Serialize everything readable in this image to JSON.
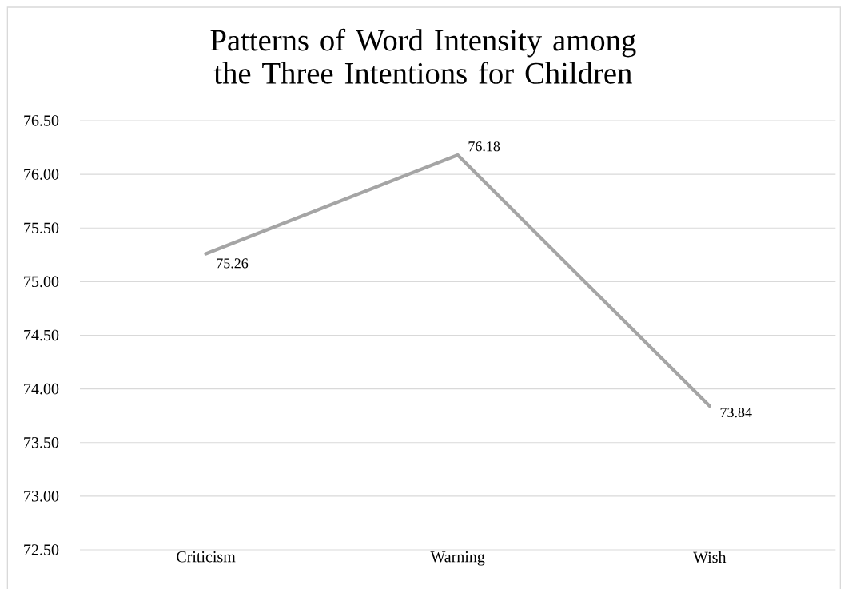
{
  "chart_data": {
    "type": "line",
    "title": "Patterns of Word Intensity among the Three Intentions for Children",
    "categories": [
      "Criticism",
      "Warning",
      "Wish"
    ],
    "values": [
      75.26,
      76.18,
      73.84
    ],
    "color": "#a5a5a5",
    "data_labels": true,
    "ylim": [
      72.5,
      76.5
    ],
    "yticks": [
      {
        "value": 72.5,
        "label": "72.50"
      },
      {
        "value": 73.0,
        "label": "73.00"
      },
      {
        "value": 73.5,
        "label": "73.50"
      },
      {
        "value": 74.0,
        "label": "74.00"
      },
      {
        "value": 74.5,
        "label": "74.50"
      },
      {
        "value": 75.0,
        "label": "75.00"
      },
      {
        "value": 75.5,
        "label": "75.50"
      },
      {
        "value": 76.0,
        "label": "76.00"
      },
      {
        "value": 76.5,
        "label": "76.50"
      }
    ],
    "grid": "y",
    "marker": "none",
    "line_style": "solid"
  }
}
